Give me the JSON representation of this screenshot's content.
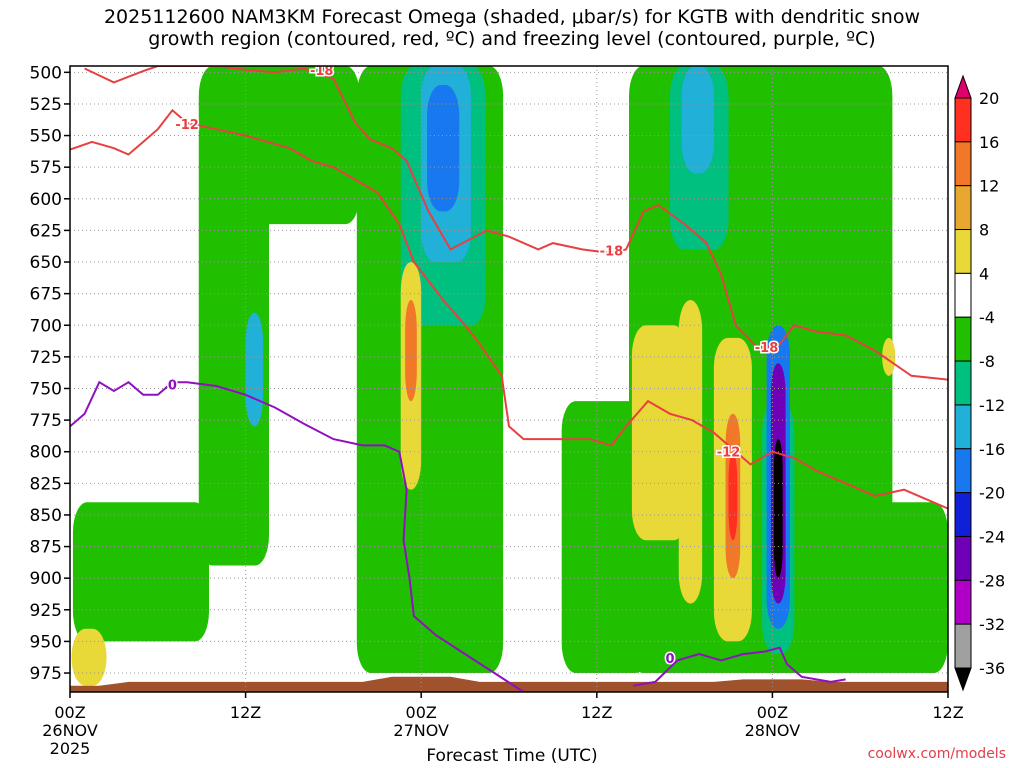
{
  "title_line1": "2025112600 NAM3KM Forecast Omega (shaded, μbar/s) for KGTB with dendritic snow",
  "title_line2": "growth region (contoured, red, ºC) and freezing level (contoured, purple, ºC)",
  "credit": "coolwx.com/models",
  "chart_data": {
    "type": "heatmap",
    "xlabel": "Forecast Time (UTC)",
    "ylabel": "",
    "x_ticks": [
      {
        "hour": 0,
        "label": "00Z",
        "sub": "26NOV",
        "sub2": "2025"
      },
      {
        "hour": 12,
        "label": "12Z",
        "sub": "",
        "sub2": ""
      },
      {
        "hour": 24,
        "label": "00Z",
        "sub": "27NOV",
        "sub2": ""
      },
      {
        "hour": 36,
        "label": "12Z",
        "sub": "",
        "sub2": ""
      },
      {
        "hour": 48,
        "label": "00Z",
        "sub": "28NOV",
        "sub2": ""
      },
      {
        "hour": 60,
        "label": "12Z",
        "sub": "",
        "sub2": ""
      }
    ],
    "xlim_hours": [
      0,
      60
    ],
    "ylim_hpa": [
      495,
      990
    ],
    "y_ticks": [
      500,
      525,
      550,
      575,
      600,
      625,
      650,
      675,
      700,
      725,
      750,
      775,
      800,
      825,
      850,
      875,
      900,
      925,
      950,
      975
    ],
    "grid": true,
    "colorbar": {
      "labels": [
        "20",
        "16",
        "12",
        "8",
        "4",
        "-4",
        "-8",
        "-12",
        "-16",
        "-20",
        "-24",
        "-28",
        "-32",
        "-36"
      ],
      "colors": [
        "#e0006a",
        "#ff3020",
        "#f07828",
        "#e8a830",
        "#e8d838",
        "#ffffff",
        "#20c000",
        "#00c080",
        "#20b0d8",
        "#1878f0",
        "#1020d8",
        "#7000b8",
        "#b000c8",
        "#a0a0a0",
        "#000000"
      ]
    },
    "shaded_regions": [
      {
        "omega": -6,
        "x0": 8.8,
        "x1": 13.6,
        "p0": 495,
        "p1": 890
      },
      {
        "omega": -6,
        "x0": 11.8,
        "x1": 19.8,
        "p0": 495,
        "p1": 620
      },
      {
        "omega": -6,
        "x0": 19.6,
        "x1": 29.6,
        "p0": 495,
        "p1": 975
      },
      {
        "omega": -6,
        "x0": 33.6,
        "x1": 39.6,
        "p0": 760,
        "p1": 975
      },
      {
        "omega": -6,
        "x0": 38.2,
        "x1": 56.2,
        "p0": 495,
        "p1": 975
      },
      {
        "omega": -6,
        "x0": 0.2,
        "x1": 9.5,
        "p0": 840,
        "p1": 950
      },
      {
        "omega": -6,
        "x0": 53.5,
        "x1": 60.0,
        "p0": 840,
        "p1": 975
      },
      {
        "omega": -10,
        "x0": 22.6,
        "x1": 28.4,
        "p0": 495,
        "p1": 700
      },
      {
        "omega": -10,
        "x0": 41.0,
        "x1": 45.0,
        "p0": 495,
        "p1": 640
      },
      {
        "omega": -10,
        "x0": 47.3,
        "x1": 49.5,
        "p0": 760,
        "p1": 960
      },
      {
        "omega": -14,
        "x0": 24.0,
        "x1": 27.4,
        "p0": 495,
        "p1": 650
      },
      {
        "omega": -14,
        "x0": 41.8,
        "x1": 44.0,
        "p0": 495,
        "p1": 580
      },
      {
        "omega": -14,
        "x0": 12.0,
        "x1": 13.2,
        "p0": 690,
        "p1": 780
      },
      {
        "omega": -18,
        "x0": 24.4,
        "x1": 26.6,
        "p0": 510,
        "p1": 610
      },
      {
        "omega": -18,
        "x0": 47.6,
        "x1": 49.2,
        "p0": 700,
        "p1": 940
      },
      {
        "omega": -26,
        "x0": 47.9,
        "x1": 48.9,
        "p0": 730,
        "p1": 920
      },
      {
        "omega": -36,
        "x0": 48.1,
        "x1": 48.7,
        "p0": 790,
        "p1": 900
      },
      {
        "omega": 6,
        "x0": 22.6,
        "x1": 24.0,
        "p0": 650,
        "p1": 830
      },
      {
        "omega": 14,
        "x0": 22.9,
        "x1": 23.7,
        "p0": 680,
        "p1": 760
      },
      {
        "omega": 6,
        "x0": 38.4,
        "x1": 42.2,
        "p0": 700,
        "p1": 870
      },
      {
        "omega": 6,
        "x0": 41.6,
        "x1": 43.2,
        "p0": 680,
        "p1": 920
      },
      {
        "omega": 6,
        "x0": 44.0,
        "x1": 46.6,
        "p0": 710,
        "p1": 950
      },
      {
        "omega": 14,
        "x0": 44.8,
        "x1": 45.8,
        "p0": 770,
        "p1": 900
      },
      {
        "omega": 18,
        "x0": 45.0,
        "x1": 45.6,
        "p0": 800,
        "p1": 870
      },
      {
        "omega": 6,
        "x0": 0.1,
        "x1": 2.5,
        "p0": 940,
        "p1": 985
      },
      {
        "omega": 6,
        "x0": 55.5,
        "x1": 56.4,
        "p0": 710,
        "p1": 740
      }
    ],
    "contours": [
      {
        "name": "-18",
        "color": "#e84040",
        "labels": [
          {
            "x": 17.2,
            "p": 498,
            "text": "-18"
          },
          {
            "x": 37.0,
            "p": 641,
            "text": "-18"
          },
          {
            "x": 47.6,
            "p": 717,
            "text": "-18"
          }
        ],
        "x": [
          1.0,
          3.0,
          5.0,
          6.0,
          10.0,
          12.0,
          14.0,
          16.0,
          18.0,
          19.5,
          20.5,
          22.0,
          23.0,
          24.5,
          26.0,
          28.5,
          30.0,
          32.0,
          33.0,
          35.0,
          37.0,
          38.0,
          39.2,
          40.2,
          42.0,
          43.5,
          44.5,
          45.5,
          47.0,
          48.5,
          49.5,
          51.0,
          53.0,
          55.0,
          57.5,
          60.0
        ],
        "p": [
          497,
          508,
          499,
          495,
          495,
          498,
          500,
          497,
          505,
          540,
          553,
          560,
          570,
          610,
          640,
          625,
          630,
          640,
          635,
          640,
          643,
          640,
          610,
          605,
          620,
          635,
          660,
          700,
          718,
          715,
          700,
          705,
          708,
          720,
          740,
          743
        ]
      },
      {
        "name": "-12",
        "color": "#e84040",
        "labels": [
          {
            "x": 8.0,
            "p": 541,
            "text": "-12"
          },
          {
            "x": 45.0,
            "p": 800,
            "text": "-12"
          }
        ],
        "x": [
          0.0,
          1.5,
          3.0,
          4.0,
          5.0,
          6.0,
          7.0,
          8.0,
          10.0,
          12.0,
          13.5,
          15.0,
          16.5,
          18.0,
          19.5,
          21.0,
          22.5,
          23.5,
          25.5,
          27.0,
          28.0,
          29.5,
          30.0,
          31.0,
          33.0,
          35.5,
          37.0,
          38.0,
          39.5,
          41.0,
          42.5,
          44.0,
          45.5,
          46.5,
          48.0,
          49.5,
          51.0,
          53.0,
          55.0,
          57.0,
          60.0
        ],
        "p": [
          561,
          555,
          560,
          565,
          555,
          545,
          530,
          540,
          545,
          550,
          555,
          560,
          570,
          575,
          585,
          595,
          620,
          650,
          680,
          700,
          715,
          740,
          780,
          790,
          790,
          790,
          795,
          780,
          760,
          770,
          775,
          785,
          800,
          810,
          800,
          805,
          815,
          825,
          835,
          830,
          845
        ]
      },
      {
        "name": "0",
        "color": "#9010c0",
        "labels": [
          {
            "x": 7.0,
            "p": 747,
            "text": "0"
          },
          {
            "x": 41.0,
            "p": 963,
            "text": "0"
          }
        ],
        "x": [
          0.0,
          1.0,
          2.0,
          3.0,
          4.0,
          5.0,
          6.0,
          7.0,
          8.0,
          10.0,
          12.0,
          14.0,
          16.0,
          18.0,
          20.0,
          21.5,
          22.5,
          23.0,
          22.8,
          23.2,
          23.5,
          25.0,
          27.0,
          29.0,
          31.0
        ],
        "p": [
          780,
          770,
          745,
          752,
          745,
          755,
          755,
          745,
          745,
          748,
          755,
          765,
          778,
          790,
          795,
          795,
          800,
          830,
          870,
          900,
          930,
          945,
          960,
          975,
          990
        ]
      },
      {
        "name": "0b",
        "color": "#9010c0",
        "labels": [],
        "x": [
          38.5,
          40.0,
          41.5,
          43.0,
          44.5,
          46.0,
          47.5,
          48.5,
          49.0,
          50.0,
          51.0,
          52.0,
          53.0
        ],
        "p": [
          985,
          982,
          965,
          960,
          965,
          960,
          958,
          955,
          968,
          978,
          980,
          982,
          980
        ]
      }
    ]
  }
}
